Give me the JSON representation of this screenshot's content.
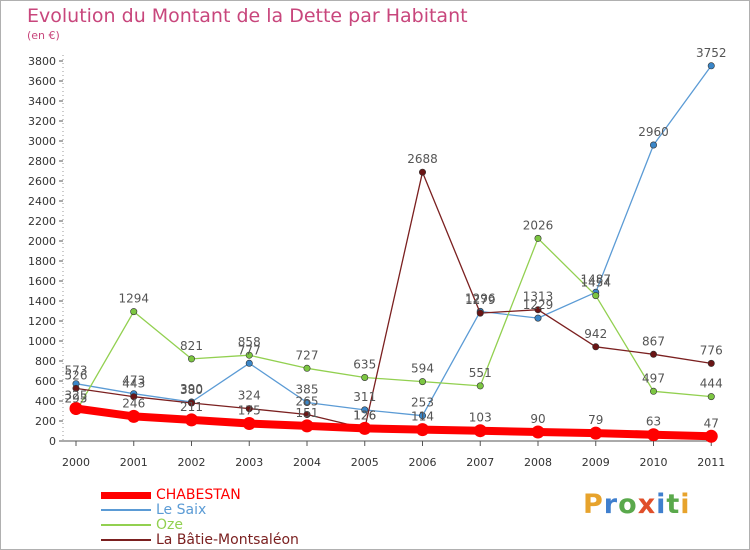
{
  "title": "Evolution du Montant de la Dette par Habitant",
  "subtitle": "(en €)",
  "logo_text": "Proxiti",
  "chart_data": {
    "type": "line",
    "x": [
      "2000",
      "2001",
      "2002",
      "2003",
      "2004",
      "2005",
      "2006",
      "2007",
      "2008",
      "2009",
      "2010",
      "2011"
    ],
    "ylim": [
      0,
      3800
    ],
    "yticks": [
      0,
      200,
      400,
      600,
      800,
      1000,
      1200,
      1400,
      1600,
      1800,
      2000,
      2200,
      2400,
      2600,
      2800,
      3000,
      3200,
      3400,
      3600,
      3800
    ],
    "grid": false,
    "legend_position": "bottom-left",
    "series": [
      {
        "name": "CHABESTAN",
        "color": "#ff0000",
        "values": [
          325,
          246,
          211,
          175,
          151,
          126,
          114,
          103,
          90,
          79,
          63,
          47
        ]
      },
      {
        "name": "Le Saix",
        "color": "#5b9bd5",
        "values": [
          573,
          473,
          390,
          777,
          385,
          311,
          253,
          1296,
          1229,
          1487,
          2960,
          3752
        ]
      },
      {
        "name": "Oze",
        "color": "#92d050",
        "values": [
          295,
          1294,
          821,
          858,
          727,
          635,
          594,
          551,
          2026,
          1454,
          497,
          444
        ]
      },
      {
        "name": "La Bâtie-Montsaléon",
        "color": "#7b2020",
        "values": [
          526,
          443,
          380,
          324,
          265,
          126,
          2688,
          1279,
          1313,
          942,
          867,
          776
        ]
      }
    ],
    "labels": [
      [
        "325",
        "246",
        "211",
        "175",
        "151",
        "126",
        "114",
        "103",
        "90",
        "79",
        "63",
        "47"
      ],
      [
        "573",
        "473",
        "390",
        "777",
        "385",
        "311",
        "253",
        "1296",
        "1229",
        "1487",
        "2960",
        "3752"
      ],
      [
        "295",
        "1294",
        "821",
        "858",
        "727",
        "635",
        "594",
        "551",
        "2026",
        "1454",
        "497",
        "444"
      ],
      [
        "526",
        "443",
        "380",
        "324",
        "265",
        "126",
        "2688",
        "1279",
        "1313",
        "942",
        "867",
        "776"
      ]
    ]
  }
}
